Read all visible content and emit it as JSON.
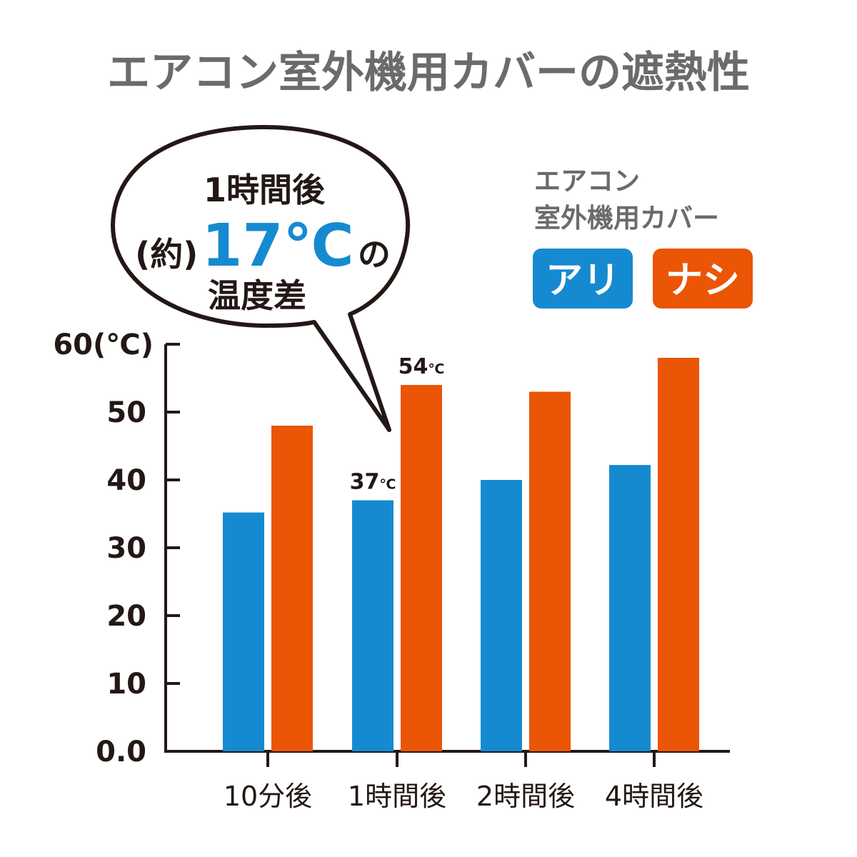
{
  "colors": {
    "with_cover": "#168ad0",
    "without_cover": "#ea5506",
    "title": "#6b6b6b",
    "text": "#231815"
  },
  "chart_data": {
    "type": "bar",
    "title": "エアコン室外機用カバーの遮熱性",
    "ylabel": "(℃)",
    "ylim": [
      0,
      60
    ],
    "y_ticks": [
      "0.0",
      "10",
      "20",
      "30",
      "40",
      "50",
      "60(℃)"
    ],
    "categories": [
      "10分後",
      "1時間後",
      "2時間後",
      "4時間後"
    ],
    "series": [
      {
        "name": "アリ",
        "values": [
          35.2,
          37,
          40,
          42.2
        ]
      },
      {
        "name": "ナシ",
        "values": [
          48,
          54,
          53,
          58
        ]
      }
    ],
    "legend_title": [
      "エアコン",
      "室外機用カバー"
    ],
    "data_labels": [
      {
        "series": 0,
        "index": 1,
        "value": "37",
        "unit": "℃"
      },
      {
        "series": 1,
        "index": 1,
        "value": "54",
        "unit": "℃"
      }
    ],
    "annotation": {
      "line1": "1時間後",
      "prefix": "(約)",
      "highlight": "17℃",
      "suffix": "の",
      "line3": "温度差"
    }
  }
}
